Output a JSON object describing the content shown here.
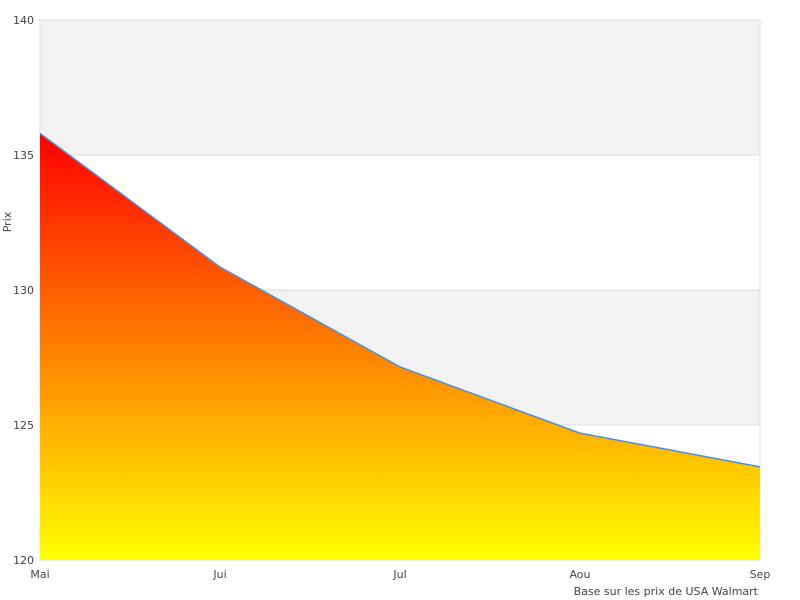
{
  "chart_data": {
    "type": "area",
    "categories": [
      "Mai",
      "Jui",
      "Jul",
      "Aou",
      "Sep"
    ],
    "values": [
      135.8,
      130.85,
      127.15,
      124.7,
      123.45
    ],
    "title": "",
    "xlabel": "Base sur les prix de USA Walmart",
    "ylabel": "Prix",
    "ylim": [
      120,
      140
    ],
    "yticks": [
      "120",
      "125",
      "130",
      "135",
      "140"
    ],
    "grid": true,
    "legend": "none",
    "colors": {
      "line": "#4a90e2",
      "fill_top": "#ff0000",
      "fill_bottom": "#ffff00",
      "band_alt": "#f2f2f2",
      "grid": "#dddddd"
    }
  }
}
